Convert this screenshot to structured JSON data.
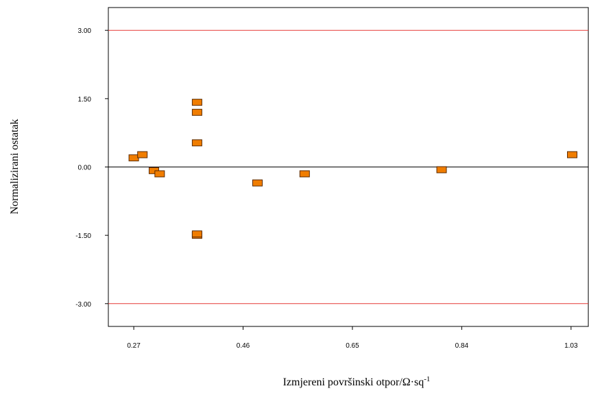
{
  "chart_data": {
    "type": "scatter",
    "xlabel": "Izmjereni  površinski otpor/Ω·sq",
    "xlabel_sup": "-1",
    "ylabel": "Normalizirani  ostatak",
    "x_ticks": [
      "0.27",
      "0.46",
      "0.65",
      "0.84",
      "1.03"
    ],
    "y_ticks": [
      "3.00",
      "1.50",
      "0.00",
      "-1.50",
      "-3.00"
    ],
    "xlim": [
      0.2258,
      1.06
    ],
    "ylim": [
      -3.5,
      3.5
    ],
    "reference_lines": [
      {
        "y": 3.0,
        "color": "#e53935"
      },
      {
        "y": -3.0,
        "color": "#e53935"
      },
      {
        "y": 0.0,
        "color": "#000000"
      }
    ],
    "points": [
      {
        "x": 0.27,
        "y": 0.2
      },
      {
        "x": 0.285,
        "y": 0.27
      },
      {
        "x": 0.305,
        "y": -0.08
      },
      {
        "x": 0.315,
        "y": -0.15
      },
      {
        "x": 0.38,
        "y": 1.42
      },
      {
        "x": 0.38,
        "y": 1.2
      },
      {
        "x": 0.38,
        "y": 0.53
      },
      {
        "x": 0.38,
        "y": -1.5
      },
      {
        "x": 0.38,
        "y": -1.47
      },
      {
        "x": 0.485,
        "y": -0.35
      },
      {
        "x": 0.567,
        "y": -0.15
      },
      {
        "x": 0.805,
        "y": -0.06
      },
      {
        "x": 1.032,
        "y": 0.27
      }
    ],
    "marker_color": "#f07d00",
    "marker_edge": "#5a2a00"
  }
}
